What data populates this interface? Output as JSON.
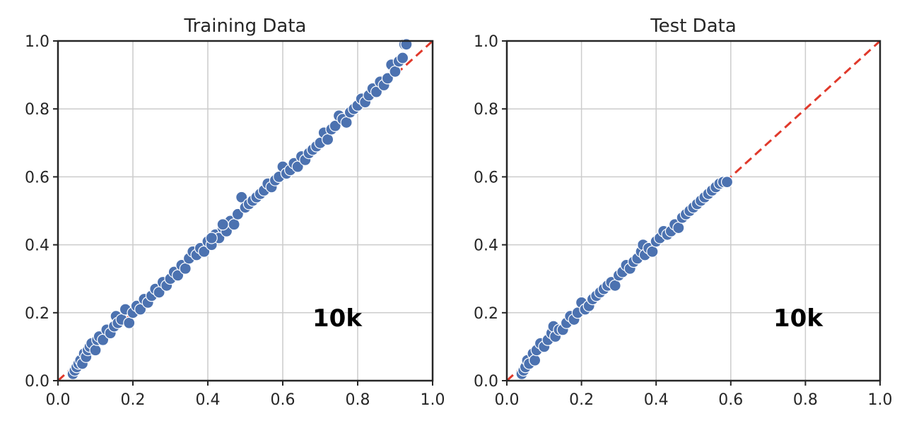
{
  "chart_data": [
    {
      "type": "scatter",
      "title": "Training Data",
      "xlim": [
        0.0,
        1.0
      ],
      "ylim": [
        0.0,
        1.0
      ],
      "xticks": [
        "0.0",
        "0.2",
        "0.4",
        "0.6",
        "0.8",
        "1.0"
      ],
      "yticks": [
        "0.0",
        "0.2",
        "0.4",
        "0.6",
        "0.8",
        "1.0"
      ],
      "grid": true,
      "reference_line": {
        "type": "y=x",
        "color": "#e0392b",
        "style": "dashed"
      },
      "annotation": "10k",
      "point_color": "#4c72b0",
      "points": [
        [
          0.04,
          0.02
        ],
        [
          0.045,
          0.03
        ],
        [
          0.05,
          0.04
        ],
        [
          0.055,
          0.05
        ],
        [
          0.06,
          0.06
        ],
        [
          0.065,
          0.05
        ],
        [
          0.07,
          0.08
        ],
        [
          0.075,
          0.07
        ],
        [
          0.08,
          0.09
        ],
        [
          0.085,
          0.1
        ],
        [
          0.09,
          0.11
        ],
        [
          0.1,
          0.09
        ],
        [
          0.105,
          0.12
        ],
        [
          0.11,
          0.13
        ],
        [
          0.12,
          0.12
        ],
        [
          0.13,
          0.15
        ],
        [
          0.14,
          0.14
        ],
        [
          0.15,
          0.16
        ],
        [
          0.155,
          0.19
        ],
        [
          0.16,
          0.17
        ],
        [
          0.17,
          0.18
        ],
        [
          0.18,
          0.21
        ],
        [
          0.19,
          0.17
        ],
        [
          0.2,
          0.2
        ],
        [
          0.21,
          0.22
        ],
        [
          0.22,
          0.21
        ],
        [
          0.23,
          0.24
        ],
        [
          0.24,
          0.23
        ],
        [
          0.25,
          0.25
        ],
        [
          0.26,
          0.27
        ],
        [
          0.27,
          0.26
        ],
        [
          0.28,
          0.29
        ],
        [
          0.29,
          0.28
        ],
        [
          0.3,
          0.3
        ],
        [
          0.31,
          0.32
        ],
        [
          0.32,
          0.31
        ],
        [
          0.33,
          0.34
        ],
        [
          0.34,
          0.33
        ],
        [
          0.35,
          0.36
        ],
        [
          0.36,
          0.38
        ],
        [
          0.37,
          0.37
        ],
        [
          0.38,
          0.39
        ],
        [
          0.39,
          0.38
        ],
        [
          0.4,
          0.41
        ],
        [
          0.41,
          0.4
        ],
        [
          0.42,
          0.43
        ],
        [
          0.43,
          0.42
        ],
        [
          0.44,
          0.45
        ],
        [
          0.45,
          0.44
        ],
        [
          0.46,
          0.47
        ],
        [
          0.47,
          0.46
        ],
        [
          0.48,
          0.49
        ],
        [
          0.49,
          0.54
        ],
        [
          0.5,
          0.51
        ],
        [
          0.51,
          0.52
        ],
        [
          0.52,
          0.53
        ],
        [
          0.53,
          0.54
        ],
        [
          0.54,
          0.55
        ],
        [
          0.55,
          0.56
        ],
        [
          0.56,
          0.58
        ],
        [
          0.57,
          0.57
        ],
        [
          0.58,
          0.59
        ],
        [
          0.59,
          0.6
        ],
        [
          0.6,
          0.63
        ],
        [
          0.61,
          0.61
        ],
        [
          0.62,
          0.62
        ],
        [
          0.63,
          0.64
        ],
        [
          0.64,
          0.63
        ],
        [
          0.65,
          0.66
        ],
        [
          0.66,
          0.65
        ],
        [
          0.67,
          0.67
        ],
        [
          0.68,
          0.68
        ],
        [
          0.69,
          0.69
        ],
        [
          0.7,
          0.7
        ],
        [
          0.71,
          0.73
        ],
        [
          0.72,
          0.71
        ],
        [
          0.73,
          0.74
        ],
        [
          0.74,
          0.75
        ],
        [
          0.75,
          0.78
        ],
        [
          0.76,
          0.77
        ],
        [
          0.77,
          0.76
        ],
        [
          0.78,
          0.79
        ],
        [
          0.79,
          0.8
        ],
        [
          0.8,
          0.81
        ],
        [
          0.81,
          0.83
        ],
        [
          0.82,
          0.82
        ],
        [
          0.83,
          0.84
        ],
        [
          0.84,
          0.86
        ],
        [
          0.85,
          0.85
        ],
        [
          0.86,
          0.88
        ],
        [
          0.87,
          0.87
        ],
        [
          0.88,
          0.89
        ],
        [
          0.89,
          0.93
        ],
        [
          0.9,
          0.91
        ],
        [
          0.91,
          0.94
        ],
        [
          0.92,
          0.95
        ],
        [
          0.925,
          0.99
        ],
        [
          0.93,
          0.99
        ],
        [
          0.44,
          0.46
        ],
        [
          0.41,
          0.42
        ]
      ]
    },
    {
      "type": "scatter",
      "title": "Test Data",
      "xlim": [
        0.0,
        1.0
      ],
      "ylim": [
        0.0,
        1.0
      ],
      "xticks": [
        "0.0",
        "0.2",
        "0.4",
        "0.6",
        "0.8",
        "1.0"
      ],
      "yticks": [
        "0.0",
        "0.2",
        "0.4",
        "0.6",
        "0.8",
        "1.0"
      ],
      "grid": true,
      "reference_line": {
        "type": "y=x",
        "color": "#e0392b",
        "style": "dashed"
      },
      "annotation": "10k",
      "point_color": "#4c72b0",
      "points": [
        [
          0.04,
          0.02
        ],
        [
          0.045,
          0.03
        ],
        [
          0.05,
          0.04
        ],
        [
          0.055,
          0.06
        ],
        [
          0.06,
          0.05
        ],
        [
          0.07,
          0.08
        ],
        [
          0.075,
          0.06
        ],
        [
          0.08,
          0.09
        ],
        [
          0.09,
          0.11
        ],
        [
          0.1,
          0.1
        ],
        [
          0.11,
          0.12
        ],
        [
          0.12,
          0.14
        ],
        [
          0.125,
          0.16
        ],
        [
          0.13,
          0.13
        ],
        [
          0.14,
          0.15
        ],
        [
          0.15,
          0.15
        ],
        [
          0.16,
          0.17
        ],
        [
          0.17,
          0.19
        ],
        [
          0.18,
          0.18
        ],
        [
          0.19,
          0.2
        ],
        [
          0.2,
          0.23
        ],
        [
          0.21,
          0.21
        ],
        [
          0.22,
          0.22
        ],
        [
          0.23,
          0.24
        ],
        [
          0.24,
          0.25
        ],
        [
          0.25,
          0.26
        ],
        [
          0.26,
          0.27
        ],
        [
          0.27,
          0.28
        ],
        [
          0.28,
          0.29
        ],
        [
          0.29,
          0.28
        ],
        [
          0.3,
          0.31
        ],
        [
          0.31,
          0.32
        ],
        [
          0.32,
          0.34
        ],
        [
          0.33,
          0.33
        ],
        [
          0.34,
          0.35
        ],
        [
          0.35,
          0.36
        ],
        [
          0.36,
          0.38
        ],
        [
          0.365,
          0.4
        ],
        [
          0.37,
          0.37
        ],
        [
          0.38,
          0.39
        ],
        [
          0.39,
          0.38
        ],
        [
          0.4,
          0.41
        ],
        [
          0.41,
          0.42
        ],
        [
          0.42,
          0.44
        ],
        [
          0.43,
          0.43
        ],
        [
          0.44,
          0.44
        ],
        [
          0.45,
          0.46
        ],
        [
          0.46,
          0.45
        ],
        [
          0.47,
          0.48
        ],
        [
          0.48,
          0.49
        ],
        [
          0.49,
          0.5
        ],
        [
          0.5,
          0.51
        ],
        [
          0.51,
          0.52
        ],
        [
          0.52,
          0.53
        ],
        [
          0.53,
          0.54
        ],
        [
          0.54,
          0.55
        ],
        [
          0.55,
          0.56
        ],
        [
          0.56,
          0.57
        ],
        [
          0.57,
          0.58
        ],
        [
          0.58,
          0.585
        ],
        [
          0.59,
          0.585
        ]
      ]
    }
  ]
}
